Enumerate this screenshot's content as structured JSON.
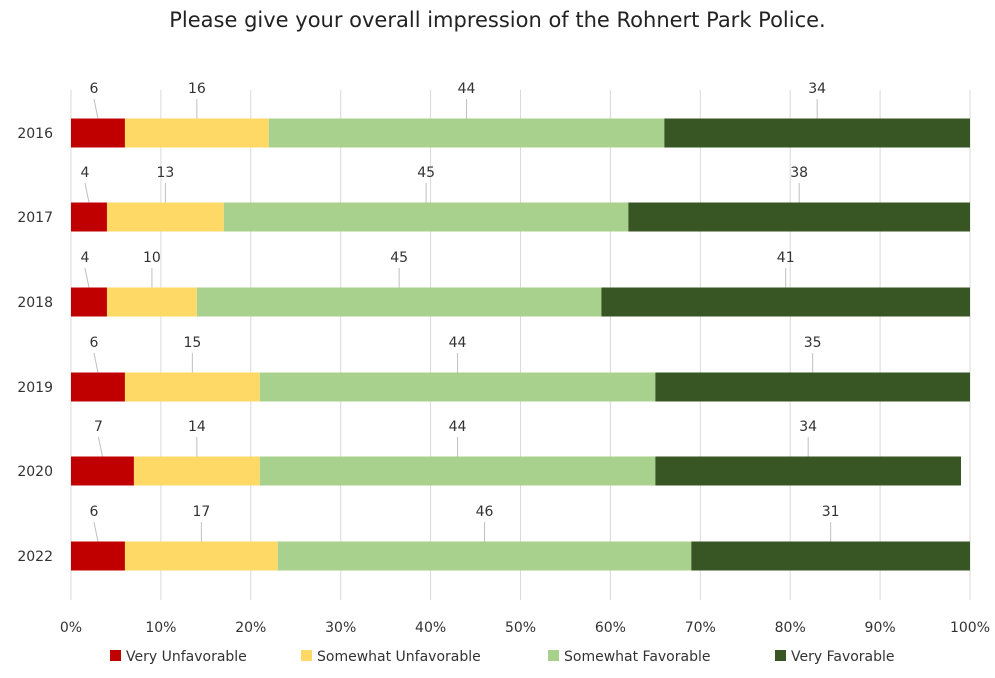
{
  "chart_data": {
    "type": "bar",
    "orientation": "horizontal",
    "stacked": true,
    "percent_stacked": true,
    "title": "Please give your overall impression of the Rohnert Park Police.",
    "categories": [
      "2016",
      "2017",
      "2018",
      "2019",
      "2020",
      "2022"
    ],
    "series": [
      {
        "name": "Very Unfavorable",
        "color": "#c00000",
        "values": [
          6,
          4,
          4,
          6,
          7,
          6
        ]
      },
      {
        "name": "Somewhat Unfavorable",
        "color": "#ffd966",
        "values": [
          16,
          13,
          10,
          15,
          14,
          17
        ]
      },
      {
        "name": "Somewhat Favorable",
        "color": "#a9d18e",
        "values": [
          44,
          45,
          45,
          44,
          44,
          46
        ]
      },
      {
        "name": "Very Favorable",
        "color": "#375623",
        "values": [
          34,
          38,
          41,
          35,
          34,
          31
        ]
      }
    ],
    "xlim": [
      0,
      100
    ],
    "xticks": [
      "0%",
      "10%",
      "20%",
      "30%",
      "40%",
      "50%",
      "60%",
      "70%",
      "80%",
      "90%",
      "100%"
    ],
    "grid": true,
    "legend": "bottom"
  }
}
